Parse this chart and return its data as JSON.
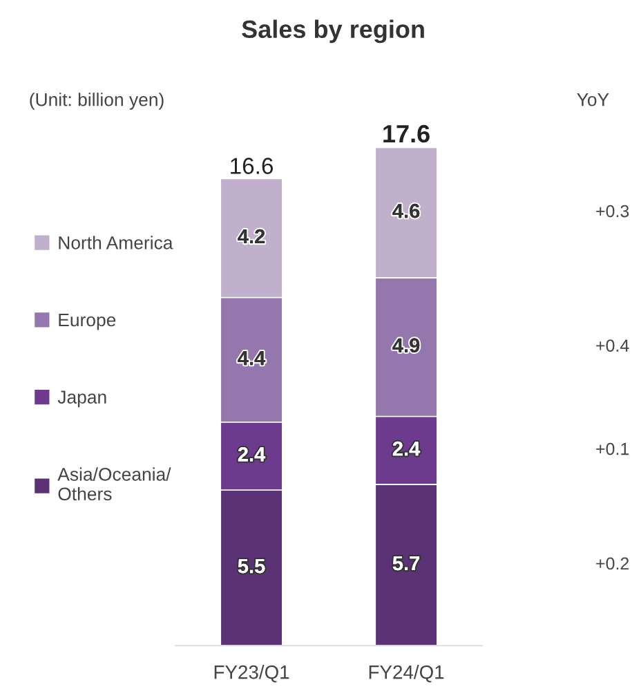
{
  "chart_data": {
    "type": "bar",
    "title": "Sales by region",
    "stacked": true,
    "data_labels": true,
    "legend": "left",
    "categories": [
      "FY23/Q1",
      "FY24/Q1"
    ],
    "series": [
      {
        "name": "Asia/Oceania/\nOthers",
        "color": "#5a3275",
        "values": [
          5.5,
          5.7
        ]
      },
      {
        "name": "Japan",
        "color": "#6d3b8e",
        "values": [
          2.4,
          2.4
        ]
      },
      {
        "name": "Europe",
        "color": "#9478ad",
        "values": [
          4.4,
          4.9
        ]
      },
      {
        "name": "North America",
        "color": "#c0b0cc",
        "values": [
          4.2,
          4.6
        ]
      }
    ],
    "totals": [
      "16.6",
      "17.6"
    ],
    "annotations": [
      "(Unit: billion yen)",
      "YoY",
      "+0.2",
      "+0.1",
      "+0.4",
      "+0.3"
    ]
  }
}
